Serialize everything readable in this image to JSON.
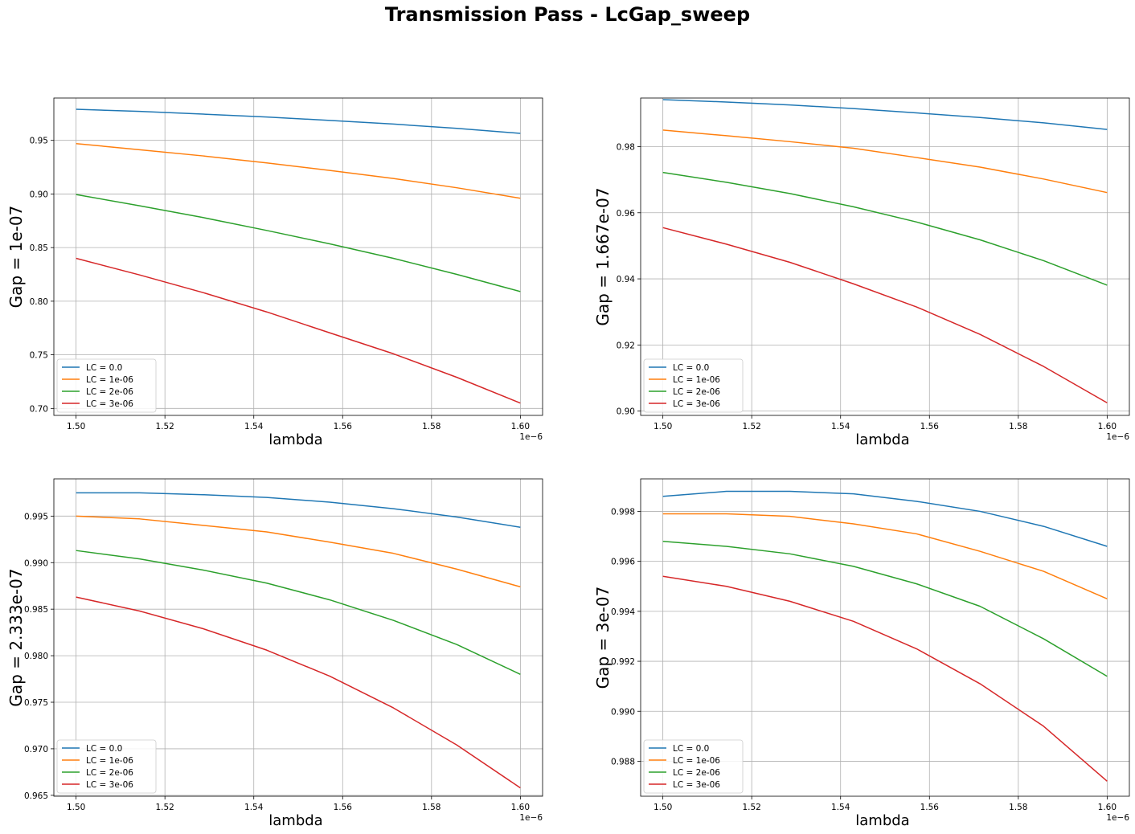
{
  "suptitle": "Transmission Pass - LcGap_sweep",
  "colors": {
    "LC = 0.0": "#1f77b4",
    "LC = 1e-06": "#ff7f0e",
    "LC = 2e-06": "#2ca02c",
    "LC = 3e-06": "#d62728"
  },
  "chart_data": [
    {
      "type": "line",
      "xlabel": "lambda",
      "ylabel": "Gap = 1e-07",
      "x_offset_text": "1e−6",
      "legend_loc": "lower-left",
      "grid": true,
      "xlim": [
        1.495,
        1.605
      ],
      "ylim": [
        0.6935,
        0.9895
      ],
      "xticks": [
        "1.50",
        "1.52",
        "1.54",
        "1.56",
        "1.58",
        "1.60"
      ],
      "yticks": [
        "0.70",
        "0.75",
        "0.80",
        "0.85",
        "0.90",
        "0.95"
      ],
      "x": [
        1.5,
        1.5143,
        1.5286,
        1.5429,
        1.5571,
        1.5714,
        1.5857,
        1.6
      ],
      "series": [
        {
          "name": "LC = 0.0",
          "values": [
            0.979,
            0.977,
            0.9745,
            0.9718,
            0.9686,
            0.9652,
            0.9612,
            0.9565
          ]
        },
        {
          "name": "LC = 1e-06",
          "values": [
            0.947,
            0.9413,
            0.9355,
            0.929,
            0.922,
            0.9145,
            0.9058,
            0.896
          ]
        },
        {
          "name": "LC = 2e-06",
          "values": [
            0.8995,
            0.889,
            0.878,
            0.866,
            0.8535,
            0.84,
            0.825,
            0.809
          ]
        },
        {
          "name": "LC = 3e-06",
          "values": [
            0.84,
            0.8245,
            0.808,
            0.79,
            0.7705,
            0.751,
            0.729,
            0.705
          ]
        }
      ]
    },
    {
      "type": "line",
      "xlabel": "lambda",
      "ylabel": "Gap = 1.667e-07",
      "x_offset_text": "1e−6",
      "legend_loc": "lower-left",
      "grid": true,
      "xlim": [
        1.495,
        1.605
      ],
      "ylim": [
        0.8987,
        0.9947
      ],
      "xticks": [
        "1.50",
        "1.52",
        "1.54",
        "1.56",
        "1.58",
        "1.60"
      ],
      "yticks": [
        "0.90",
        "0.92",
        "0.94",
        "0.96",
        "0.98"
      ],
      "x": [
        1.5,
        1.5143,
        1.5286,
        1.5429,
        1.5571,
        1.5714,
        1.5857,
        1.6
      ],
      "series": [
        {
          "name": "LC = 0.0",
          "values": [
            0.9942,
            0.9935,
            0.9926,
            0.9915,
            0.9902,
            0.9888,
            0.9872,
            0.9852
          ]
        },
        {
          "name": "LC = 1e-06",
          "values": [
            0.985,
            0.9833,
            0.9815,
            0.9795,
            0.9767,
            0.9738,
            0.9702,
            0.9661
          ]
        },
        {
          "name": "LC = 2e-06",
          "values": [
            0.9722,
            0.9692,
            0.9658,
            0.9618,
            0.9572,
            0.9518,
            0.9455,
            0.9381
          ]
        },
        {
          "name": "LC = 3e-06",
          "values": [
            0.9555,
            0.9505,
            0.945,
            0.9385,
            0.9315,
            0.9232,
            0.9135,
            0.9025
          ]
        }
      ]
    },
    {
      "type": "line",
      "xlabel": "lambda",
      "ylabel": "Gap = 2.333e-07",
      "x_offset_text": "1e−6",
      "legend_loc": "lower-left",
      "grid": true,
      "xlim": [
        1.495,
        1.605
      ],
      "ylim": [
        0.9649,
        0.999
      ],
      "xticks": [
        "1.50",
        "1.52",
        "1.54",
        "1.56",
        "1.58",
        "1.60"
      ],
      "yticks": [
        "0.965",
        "0.970",
        "0.975",
        "0.980",
        "0.985",
        "0.990",
        "0.995"
      ],
      "x": [
        1.5,
        1.5143,
        1.5286,
        1.5429,
        1.5571,
        1.5714,
        1.5857,
        1.6
      ],
      "series": [
        {
          "name": "LC = 0.0",
          "values": [
            0.9975,
            0.9975,
            0.9973,
            0.997,
            0.9965,
            0.9958,
            0.9949,
            0.9938
          ]
        },
        {
          "name": "LC = 1e-06",
          "values": [
            0.995,
            0.9947,
            0.994,
            0.9933,
            0.9922,
            0.991,
            0.9893,
            0.9874
          ]
        },
        {
          "name": "LC = 2e-06",
          "values": [
            0.9913,
            0.9904,
            0.9892,
            0.9878,
            0.986,
            0.9838,
            0.9812,
            0.978
          ]
        },
        {
          "name": "LC = 3e-06",
          "values": [
            0.9863,
            0.9848,
            0.9829,
            0.9806,
            0.9778,
            0.9744,
            0.9704,
            0.9658
          ]
        }
      ]
    },
    {
      "type": "line",
      "xlabel": "lambda",
      "ylabel": "Gap = 3e-07",
      "x_offset_text": "1e−6",
      "legend_loc": "lower-left",
      "grid": true,
      "xlim": [
        1.495,
        1.605
      ],
      "ylim": [
        0.9866,
        0.9993
      ],
      "xticks": [
        "1.50",
        "1.52",
        "1.54",
        "1.56",
        "1.58",
        "1.60"
      ],
      "yticks": [
        "0.988",
        "0.990",
        "0.992",
        "0.994",
        "0.996",
        "0.998"
      ],
      "x": [
        1.5,
        1.5143,
        1.5286,
        1.5429,
        1.5571,
        1.5714,
        1.5857,
        1.6
      ],
      "series": [
        {
          "name": "LC = 0.0",
          "values": [
            0.9986,
            0.9988,
            0.9988,
            0.9987,
            0.9984,
            0.998,
            0.9974,
            0.9966
          ]
        },
        {
          "name": "LC = 1e-06",
          "values": [
            0.9979,
            0.9979,
            0.9978,
            0.9975,
            0.9971,
            0.9964,
            0.9956,
            0.9945
          ]
        },
        {
          "name": "LC = 2e-06",
          "values": [
            0.9968,
            0.9966,
            0.9963,
            0.9958,
            0.9951,
            0.9942,
            0.9929,
            0.9914
          ]
        },
        {
          "name": "LC = 3e-06",
          "values": [
            0.9954,
            0.995,
            0.9944,
            0.9936,
            0.9925,
            0.9911,
            0.9894,
            0.9872
          ]
        }
      ]
    }
  ]
}
